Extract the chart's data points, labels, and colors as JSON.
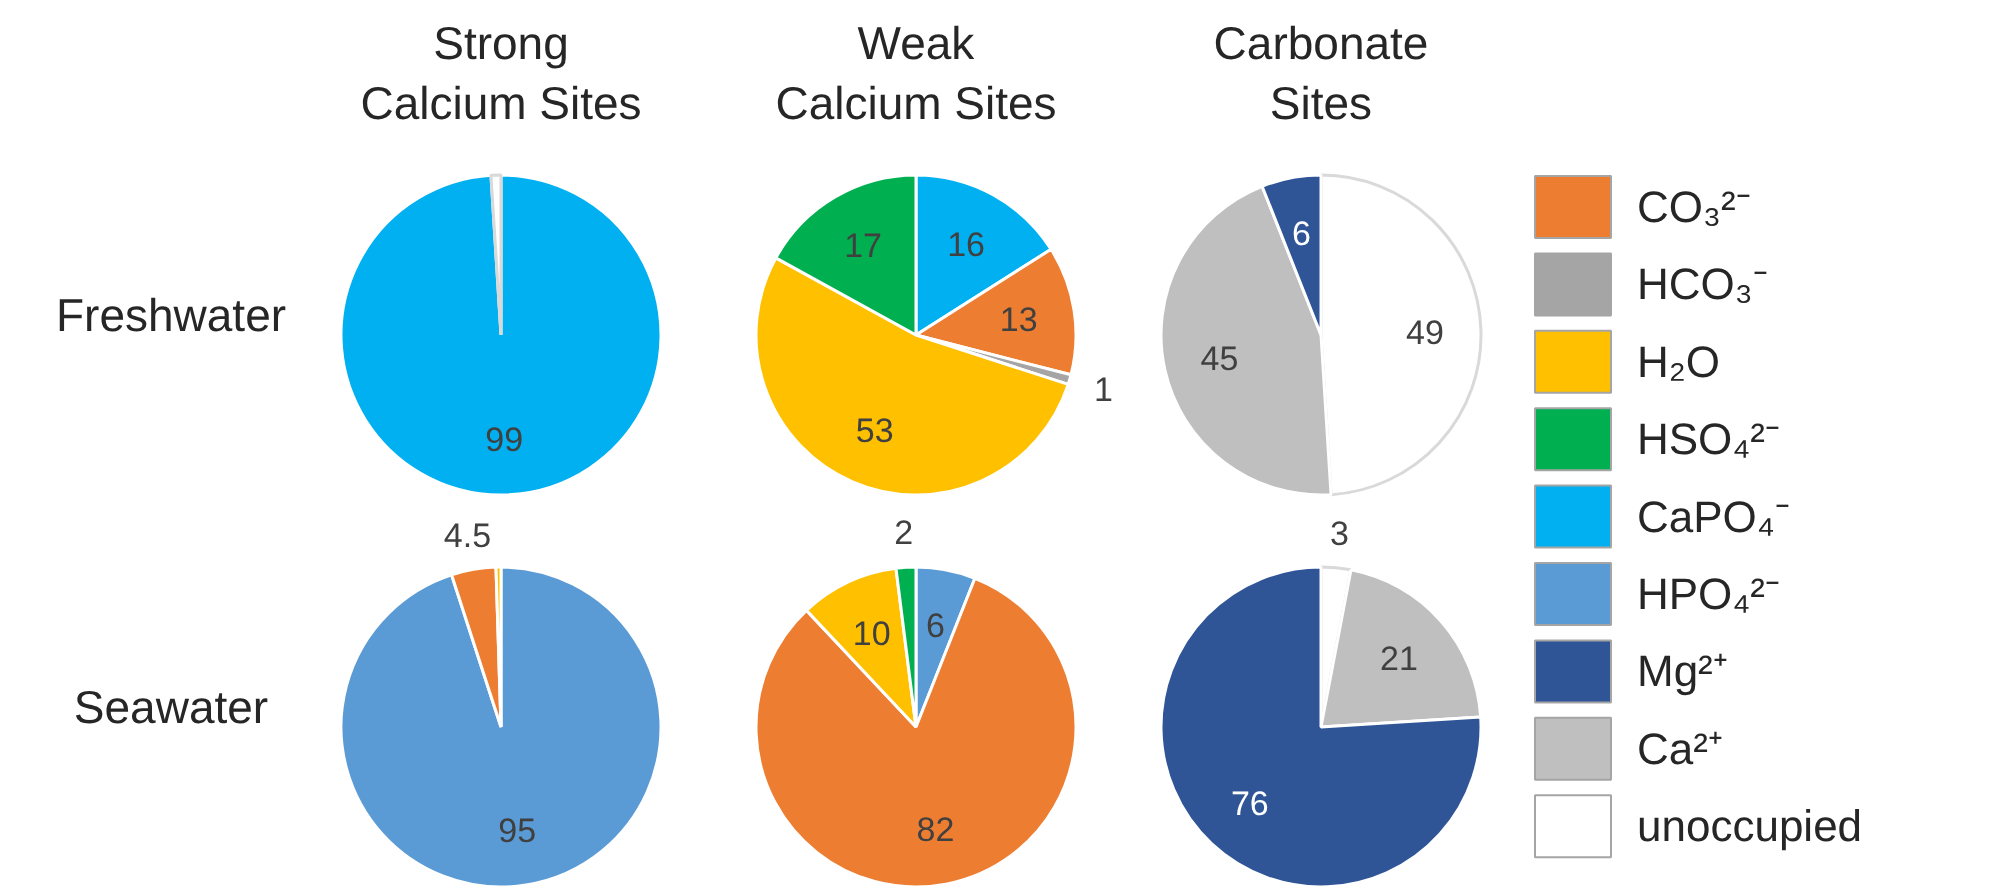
{
  "chart_data": [
    {
      "type": "pie",
      "title": "Strong Calcium Sites",
      "ylabel": "Freshwater",
      "categories": [
        null,
        null
      ],
      "values": [
        99,
        1
      ],
      "colors": [
        "#00b0f0",
        "#ffffff"
      ],
      "value_labels": [
        "99",
        null
      ]
    },
    {
      "type": "pie",
      "title": "Weak Calcium Sites",
      "categories": [
        null,
        null,
        null,
        null,
        null
      ],
      "values": [
        16,
        13,
        1,
        53,
        17
      ],
      "colors": [
        "#00b0f0",
        "#ed7d31",
        "#a5a5a5",
        "#ffc000",
        "#00b050"
      ],
      "value_labels": [
        "16",
        "13",
        "1",
        "53",
        "17"
      ]
    },
    {
      "type": "pie",
      "title": "Carbonate Sites",
      "categories": [
        null,
        null,
        null
      ],
      "values": [
        49,
        45,
        6
      ],
      "colors": [
        "#ffffff",
        "#bfbfbf",
        "#2f5597"
      ],
      "value_labels": [
        "49",
        "45",
        "6"
      ]
    },
    {
      "type": "pie",
      "ylabel": "Seawater",
      "categories": [
        null,
        null,
        null
      ],
      "values": [
        95,
        4.5,
        0.5
      ],
      "colors": [
        "#5b9bd5",
        "#ed7d31",
        "#ffc000"
      ],
      "value_labels": [
        "95",
        "4.5",
        null
      ]
    },
    {
      "type": "pie",
      "categories": [
        null,
        null,
        null,
        null
      ],
      "values": [
        6,
        82,
        10,
        2
      ],
      "colors": [
        "#5b9bd5",
        "#ed7d31",
        "#ffc000",
        "#00b050"
      ],
      "value_labels": [
        "6",
        "82",
        "10",
        "2"
      ]
    },
    {
      "type": "pie",
      "categories": [
        null,
        null,
        null
      ],
      "values": [
        3,
        21,
        76
      ],
      "colors": [
        "#ffffff",
        "#bfbfbf",
        "#2f5597"
      ],
      "value_labels": [
        "3",
        "21",
        "76"
      ]
    },
    {
      "type": "other",
      "categories": [
        "CO₃²⁻",
        "HCO₃⁻",
        "H₂O",
        "HSO₄²⁻",
        "CaPO₄⁻",
        "HPO₄²⁻",
        "Mg²⁺",
        "Ca²⁺",
        "unoccupied"
      ],
      "colors": [
        "#ed7d31",
        "#a5a5a5",
        "#ffc000",
        "#00b050",
        "#00b0f0",
        "#5b9bd5",
        "#2f5597",
        "#bfbfbf",
        "#ffffff"
      ]
    }
  ]
}
